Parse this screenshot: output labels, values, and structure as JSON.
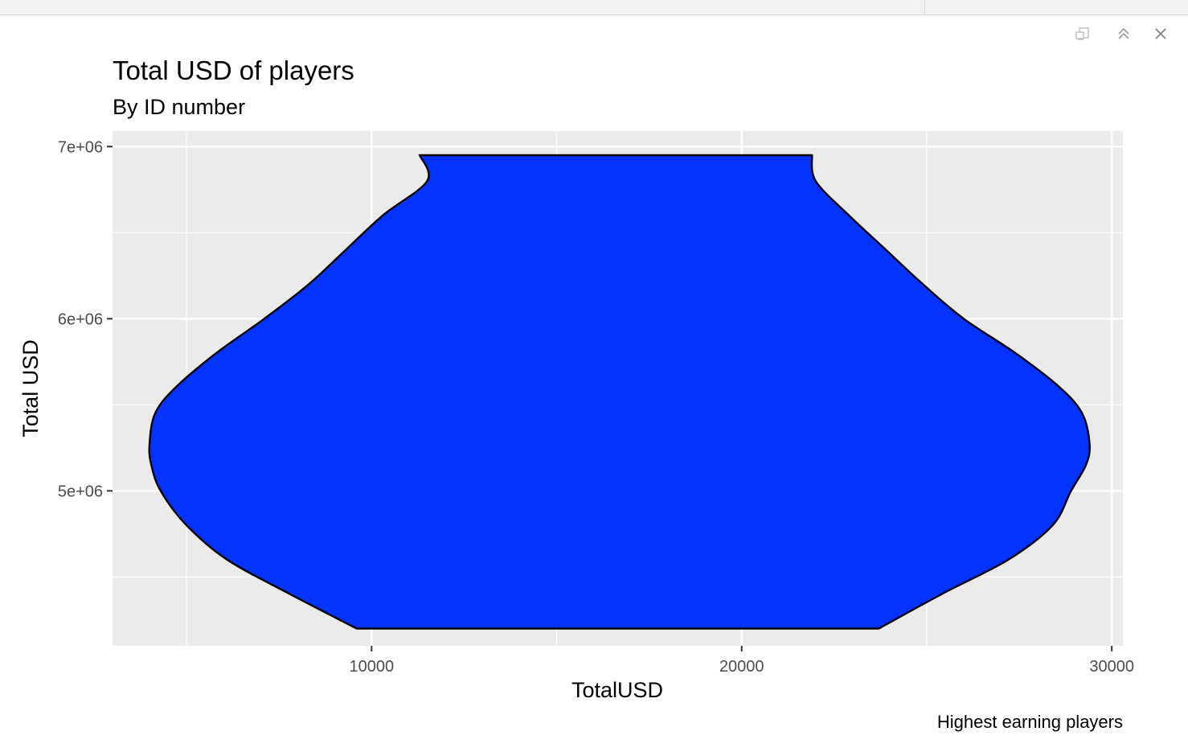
{
  "toolbar": {
    "icons": [
      "export-icon",
      "collapse-icon",
      "close-icon"
    ]
  },
  "chart_data": {
    "type": "violin",
    "title": "Total USD of players",
    "subtitle": "By ID number",
    "xlabel": "TotalUSD",
    "ylabel": "Total USD",
    "caption": "Highest earning players",
    "xlim": [
      3000,
      30300
    ],
    "ylim": [
      4100000,
      7090000
    ],
    "x_ticks": [
      10000,
      20000,
      30000
    ],
    "x_tick_labels": [
      "10000",
      "20000",
      "30000"
    ],
    "y_ticks": [
      5000000,
      6000000,
      7000000
    ],
    "y_tick_labels": [
      "5e+06",
      "6e+06",
      "7e+06"
    ],
    "grid": true,
    "fill_color": "#0433ff",
    "outline_color": "#000000",
    "panel_color": "#ebebeb",
    "density_profile": {
      "y": [
        4200000,
        4400000,
        4600000,
        4800000,
        5000000,
        5150000,
        5270000,
        5450000,
        5600000,
        5800000,
        6000000,
        6200000,
        6400000,
        6600000,
        6800000,
        6950000
      ],
      "x_left": [
        9600,
        7800,
        6100,
        5000,
        4300,
        4050,
        4000,
        4150,
        4700,
        5800,
        7100,
        8300,
        9300,
        10300,
        11500,
        11300
      ],
      "x_right": [
        23700,
        25400,
        27200,
        28400,
        28900,
        29300,
        29400,
        29200,
        28600,
        27400,
        26000,
        24900,
        23900,
        22900,
        22000,
        21900
      ]
    }
  }
}
